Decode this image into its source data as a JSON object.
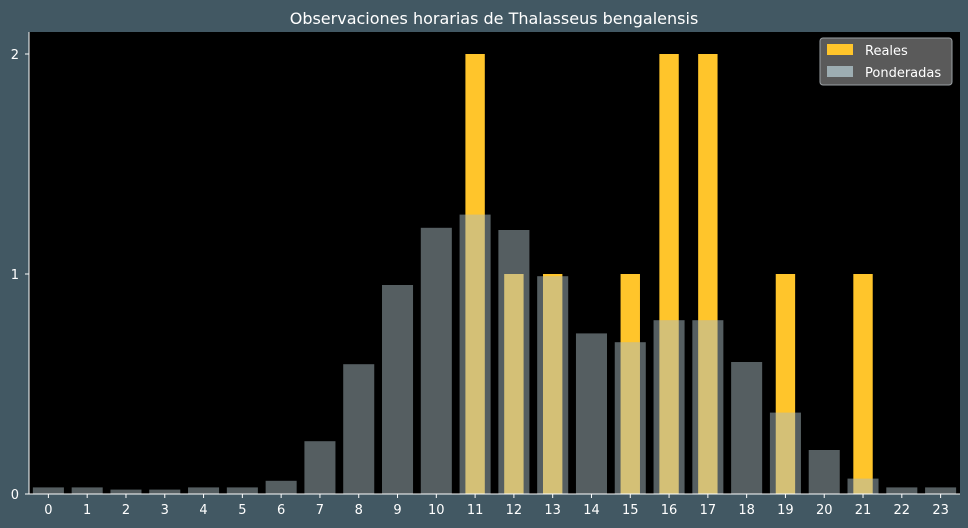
{
  "chart_data": {
    "type": "bar",
    "title": "Observaciones horarias de Thalasseus bengalensis",
    "xlabel": "",
    "ylabel": "",
    "categories": [
      "0",
      "1",
      "2",
      "3",
      "4",
      "5",
      "6",
      "7",
      "8",
      "9",
      "10",
      "11",
      "12",
      "13",
      "14",
      "15",
      "16",
      "17",
      "18",
      "19",
      "20",
      "21",
      "22",
      "23"
    ],
    "ylim": [
      0,
      2.1
    ],
    "yticks": [
      "0",
      "1",
      "2"
    ],
    "grid": false,
    "legend_position": "top-right",
    "series": [
      {
        "name": "Reales",
        "color": "#ffc52b",
        "values": [
          0,
          0,
          0,
          0,
          0,
          0,
          0,
          0,
          0,
          0,
          0,
          2,
          1,
          1,
          0,
          1,
          2,
          2,
          0,
          1,
          0,
          1,
          0,
          0
        ]
      },
      {
        "name": "Ponderadas",
        "color": "#a9bcc2",
        "opacity": 0.5,
        "values": [
          0.03,
          0.03,
          0.02,
          0.02,
          0.03,
          0.03,
          0.06,
          0.24,
          0.59,
          0.95,
          1.21,
          1.27,
          1.2,
          0.99,
          0.73,
          0.69,
          0.79,
          0.79,
          0.6,
          0.37,
          0.2,
          0.07,
          0.03,
          0.03
        ]
      }
    ],
    "colors": {
      "background": "#425863",
      "plot_area": "#000000",
      "legend_background": "#5a5a5a"
    }
  }
}
